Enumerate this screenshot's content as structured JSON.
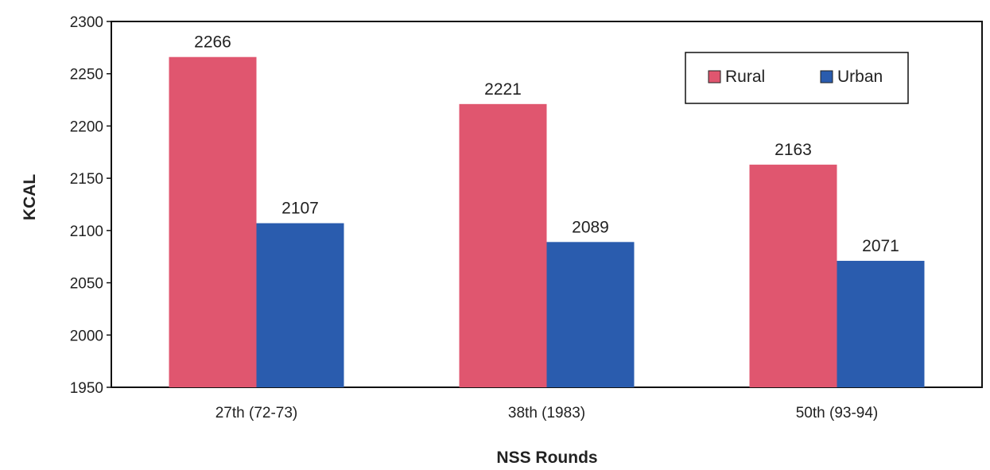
{
  "chart_data": {
    "type": "bar",
    "title": "",
    "xlabel": "NSS Rounds",
    "ylabel": "KCAL",
    "categories": [
      "27th (72-73)",
      "38th (1983)",
      "50th (93-94)"
    ],
    "series": [
      {
        "name": "Rural",
        "values": [
          2266,
          2221,
          2163
        ],
        "color": "#e0566f"
      },
      {
        "name": "Urban",
        "values": [
          2107,
          2089,
          2071
        ],
        "color": "#2a5cae"
      }
    ],
    "ylim": [
      1950,
      2300
    ],
    "yticks": [
      "1950",
      "2000",
      "2050",
      "2100",
      "2150",
      "2200",
      "2250",
      "2300"
    ],
    "grid": false,
    "legend_position": "top-right"
  }
}
